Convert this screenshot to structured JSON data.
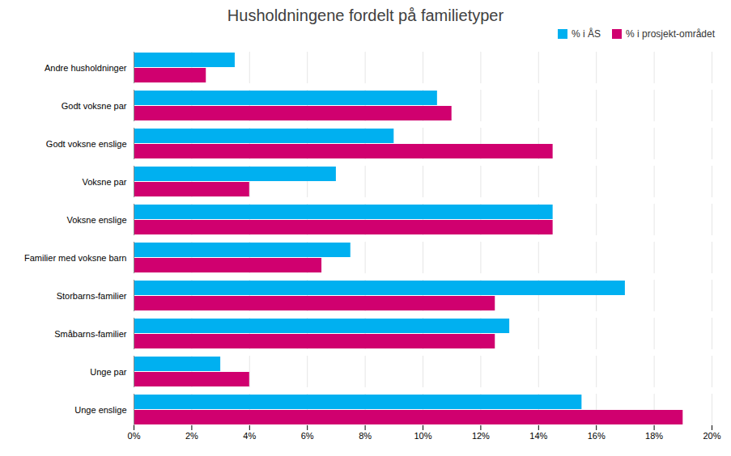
{
  "chart_data": {
    "type": "bar",
    "orientation": "horizontal",
    "title": "Husholdningene fordelt på familietyper",
    "categories": [
      "Unge enslige",
      "Unge par",
      "Småbarns-familier",
      "Storbarns-familier",
      "Familier med voksne barn",
      "Voksne enslige",
      "Voksne par",
      "Godt voksne enslige",
      "Godt voksne par",
      "Andre husholdninger"
    ],
    "series": [
      {
        "name": "% i ÅS",
        "color": "#00B0F0",
        "values": [
          15.5,
          3.0,
          13.0,
          17.0,
          7.5,
          14.5,
          7.0,
          9.0,
          10.5,
          3.5
        ]
      },
      {
        "name": "% i prosjekt-området",
        "color": "#D0006F",
        "values": [
          19.0,
          4.0,
          12.5,
          12.5,
          6.5,
          14.5,
          4.0,
          14.5,
          11.0,
          2.5
        ]
      }
    ],
    "xlim": [
      0,
      20
    ],
    "xticks": [
      {
        "value": 0,
        "label": "0%"
      },
      {
        "value": 2,
        "label": "2%"
      },
      {
        "value": 4,
        "label": "4%"
      },
      {
        "value": 6,
        "label": "6%"
      },
      {
        "value": 8,
        "label": "8%"
      },
      {
        "value": 10,
        "label": "10%"
      },
      {
        "value": 12,
        "label": "12%"
      },
      {
        "value": 14,
        "label": "14%"
      },
      {
        "value": 16,
        "label": "16%"
      },
      {
        "value": 18,
        "label": "18%"
      },
      {
        "value": 20,
        "label": "20%"
      }
    ],
    "grid": true,
    "legend": "upper right"
  }
}
